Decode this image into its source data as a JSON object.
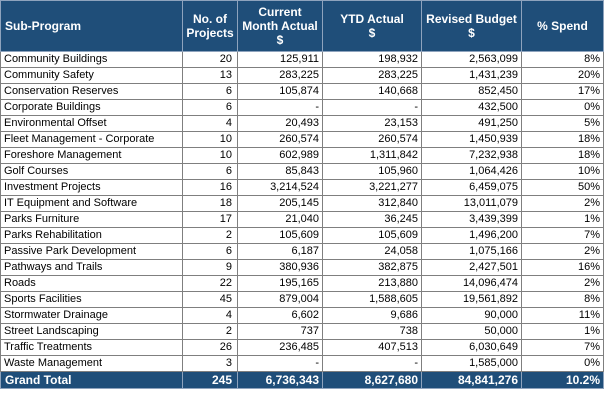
{
  "headers": {
    "sub_program": "Sub-Program",
    "projects": "No. of Projects",
    "current_month": "Current Month Actual",
    "current_month_unit": "$",
    "ytd": "YTD Actual",
    "ytd_unit": "$",
    "revised_budget": "Revised Budget",
    "revised_budget_unit": "$",
    "spend": "% Spend"
  },
  "rows": [
    {
      "name": "Community Buildings",
      "projects": "20",
      "current_month": "125,911",
      "ytd": "198,932",
      "budget": "2,563,099",
      "spend": "8%"
    },
    {
      "name": "Community Safety",
      "projects": "13",
      "current_month": "283,225",
      "ytd": "283,225",
      "budget": "1,431,239",
      "spend": "20%"
    },
    {
      "name": "Conservation Reserves",
      "projects": "6",
      "current_month": "105,874",
      "ytd": "140,668",
      "budget": "852,450",
      "spend": "17%"
    },
    {
      "name": "Corporate Buildings",
      "projects": "6",
      "current_month": "-",
      "ytd": "-",
      "budget": "432,500",
      "spend": "0%"
    },
    {
      "name": "Environmental Offset",
      "projects": "4",
      "current_month": "20,493",
      "ytd": "23,153",
      "budget": "491,250",
      "spend": "5%"
    },
    {
      "name": "Fleet Management - Corporate",
      "projects": "10",
      "current_month": "260,574",
      "ytd": "260,574",
      "budget": "1,450,939",
      "spend": "18%"
    },
    {
      "name": "Foreshore Management",
      "projects": "10",
      "current_month": "602,989",
      "ytd": "1,311,842",
      "budget": "7,232,938",
      "spend": "18%"
    },
    {
      "name": "Golf Courses",
      "projects": "6",
      "current_month": "85,843",
      "ytd": "105,960",
      "budget": "1,064,426",
      "spend": "10%"
    },
    {
      "name": "Investment Projects",
      "projects": "16",
      "current_month": "3,214,524",
      "ytd": "3,221,277",
      "budget": "6,459,075",
      "spend": "50%"
    },
    {
      "name": "IT Equipment and Software",
      "projects": "18",
      "current_month": "205,145",
      "ytd": "312,840",
      "budget": "13,011,079",
      "spend": "2%"
    },
    {
      "name": "Parks Furniture",
      "projects": "17",
      "current_month": "21,040",
      "ytd": "36,245",
      "budget": "3,439,399",
      "spend": "1%"
    },
    {
      "name": "Parks Rehabilitation",
      "projects": "2",
      "current_month": "105,609",
      "ytd": "105,609",
      "budget": "1,496,200",
      "spend": "7%"
    },
    {
      "name": "Passive Park Development",
      "projects": "6",
      "current_month": "6,187",
      "ytd": "24,058",
      "budget": "1,075,166",
      "spend": "2%"
    },
    {
      "name": "Pathways and Trails",
      "projects": "9",
      "current_month": "380,936",
      "ytd": "382,875",
      "budget": "2,427,501",
      "spend": "16%"
    },
    {
      "name": "Roads",
      "projects": "22",
      "current_month": "195,165",
      "ytd": "213,880",
      "budget": "14,096,474",
      "spend": "2%"
    },
    {
      "name": "Sports Facilities",
      "projects": "45",
      "current_month": "879,004",
      "ytd": "1,588,605",
      "budget": "19,561,892",
      "spend": "8%"
    },
    {
      "name": "Stormwater Drainage",
      "projects": "4",
      "current_month": "6,602",
      "ytd": "9,686",
      "budget": "90,000",
      "spend": "11%"
    },
    {
      "name": "Street Landscaping",
      "projects": "2",
      "current_month": "737",
      "ytd": "738",
      "budget": "50,000",
      "spend": "1%"
    },
    {
      "name": "Traffic Treatments",
      "projects": "26",
      "current_month": "236,485",
      "ytd": "407,513",
      "budget": "6,030,649",
      "spend": "7%"
    },
    {
      "name": "Waste Management",
      "projects": "3",
      "current_month": "-",
      "ytd": "-",
      "budget": "1,585,000",
      "spend": "0%"
    }
  ],
  "total": {
    "name": "Grand Total",
    "projects": "245",
    "current_month": "6,736,343",
    "ytd": "8,627,680",
    "budget": "84,841,276",
    "spend": "10.2%"
  },
  "colors": {
    "header_bg": "#1f4e79",
    "header_text": "#ffffff",
    "grid": "#7f7f7f"
  }
}
